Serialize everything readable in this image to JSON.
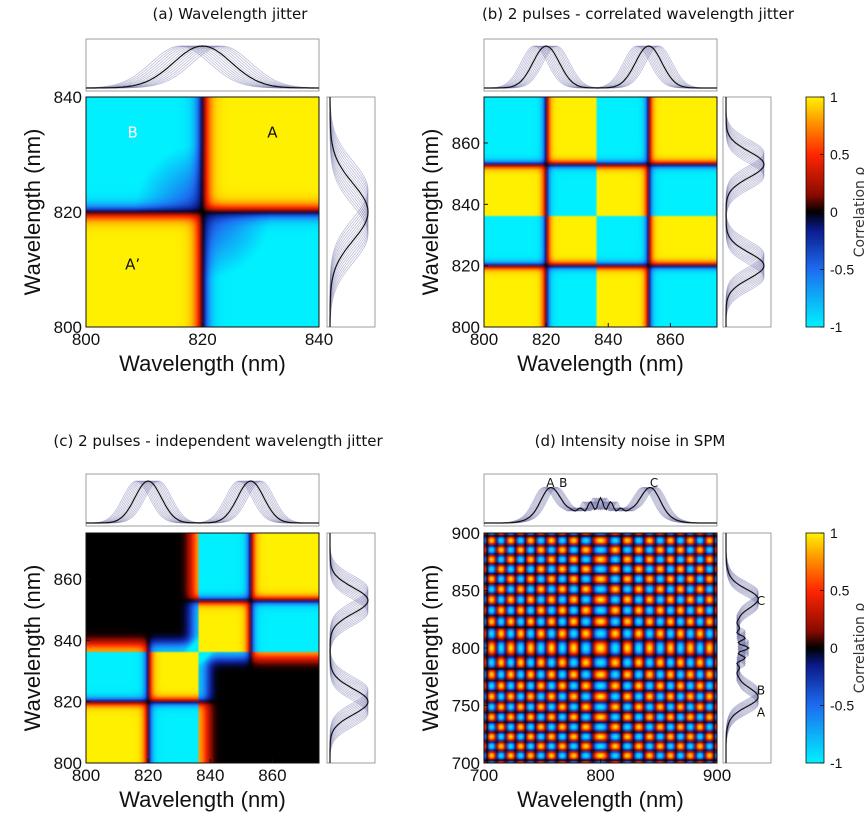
{
  "colormap": {
    "stops": [
      {
        "v": -1.0,
        "color": "#00f0ff"
      },
      {
        "v": -0.5,
        "color": "#1d6cf0"
      },
      {
        "v": -0.15,
        "color": "#0c1a8a"
      },
      {
        "v": 0.0,
        "color": "#000000"
      },
      {
        "v": 0.15,
        "color": "#8a0a00"
      },
      {
        "v": 0.5,
        "color": "#ff2600"
      },
      {
        "v": 0.8,
        "color": "#ff9a00"
      },
      {
        "v": 1.0,
        "color": "#fff000"
      }
    ]
  },
  "chart_data": [
    {
      "id": "a",
      "type": "heatmap",
      "title": "(a) Wavelength jitter",
      "xlabel": "Wavelength (nm)",
      "ylabel": "Wavelength (nm)",
      "xlim": [
        800,
        840
      ],
      "ylim": [
        800,
        840
      ],
      "xticks": [
        800,
        820,
        840
      ],
      "yticks": [
        800,
        820,
        840
      ],
      "model": "single",
      "centers": [
        820
      ],
      "annotations": [
        {
          "text": "B",
          "x": 808,
          "y": 833,
          "color": "#ffffff"
        },
        {
          "text": "A",
          "x": 832,
          "y": 833,
          "color": "#111111"
        },
        {
          "text": "A’",
          "x": 808,
          "y": 810,
          "color": "#111111"
        }
      ]
    },
    {
      "id": "b",
      "type": "heatmap",
      "title": "(b) 2 pulses - correlated wavelength jitter",
      "xlabel": "Wavelength (nm)",
      "ylabel": "Wavelength (nm)",
      "xlim": [
        800,
        875
      ],
      "ylim": [
        800,
        875
      ],
      "xticks": [
        800,
        820,
        840,
        860
      ],
      "yticks": [
        800,
        820,
        840,
        860
      ],
      "model": "correlated",
      "centers": [
        820,
        853
      ],
      "colorbar": {
        "label": "Correlation ρ",
        "ticks": [
          "1",
          "0.5",
          "0",
          "-0.5",
          "-1"
        ]
      }
    },
    {
      "id": "c",
      "type": "heatmap",
      "title": "(c) 2 pulses - independent wavelength jitter",
      "xlabel": "Wavelength (nm)",
      "ylabel": "Wavelength (nm)",
      "xlim": [
        800,
        875
      ],
      "ylim": [
        800,
        875
      ],
      "xticks": [
        800,
        820,
        840,
        860
      ],
      "yticks": [
        800,
        820,
        840,
        860
      ],
      "model": "independent",
      "centers": [
        820,
        853
      ]
    },
    {
      "id": "d",
      "type": "heatmap",
      "title": "(d) Intensity noise in SPM",
      "xlabel": "Wavelength (nm)",
      "ylabel": "Wavelength (nm)",
      "xlim": [
        700,
        900
      ],
      "ylim": [
        700,
        900
      ],
      "xticks": [
        700,
        800,
        900
      ],
      "yticks": [
        700,
        750,
        800,
        850,
        900
      ],
      "model": "spm",
      "centers": [
        800
      ],
      "colorbar": {
        "label": "Correlation ρ",
        "ticks": [
          "1",
          "0.5",
          "0",
          "-0.5",
          "-1"
        ]
      },
      "spectrum_labels": {
        "top": [
          {
            "text": "A",
            "x": 757
          },
          {
            "text": "B",
            "x": 768
          },
          {
            "text": "C",
            "x": 846
          }
        ],
        "side": [
          {
            "text": "C",
            "y": 841
          },
          {
            "text": "B",
            "y": 763
          },
          {
            "text": "A",
            "y": 744
          }
        ]
      }
    }
  ]
}
